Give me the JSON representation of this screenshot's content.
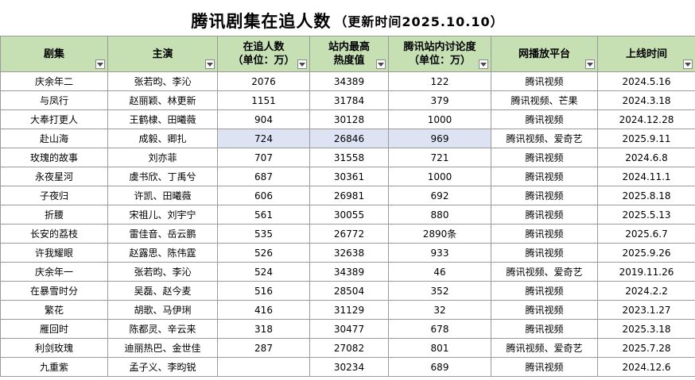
{
  "title": {
    "main": "腾讯剧集在追人数",
    "sub": "（更新时间2025.10.10）"
  },
  "colors": {
    "header_bg": "#c6e0b4",
    "selected_bg": "#dde3f3",
    "grid_line": "#9a9a9a"
  },
  "columns": [
    {
      "label": [
        "剧集"
      ]
    },
    {
      "label": [
        "主演"
      ]
    },
    {
      "label": [
        "在追人数",
        "（单位：万）"
      ]
    },
    {
      "label": [
        "站内最高",
        "热度值"
      ]
    },
    {
      "label": [
        "腾讯站内讨论度",
        "（单位：万）"
      ]
    },
    {
      "label": [
        "网播放平台"
      ]
    },
    {
      "label": [
        "上线时间"
      ]
    }
  ],
  "filter_icon": "dropdown-filter-icon",
  "rows": [
    [
      "庆余年二",
      "张若昀、李沁",
      "2076",
      "34389",
      "122",
      "腾讯视频",
      "2024.5.16"
    ],
    [
      "与凤行",
      "赵丽颖、林更新",
      "1151",
      "31784",
      "379",
      "腾讯视频、芒果",
      "2024.3.18"
    ],
    [
      "大奉打更人",
      "王鹤棣、田曦薇",
      "904",
      "30128",
      "1000",
      "腾讯视频",
      "2024.12.28"
    ],
    [
      "赴山海",
      "成毅、卿扎",
      "724",
      "26846",
      "969",
      "腾讯视频、爱奇艺",
      "2025.9.11"
    ],
    [
      "玫瑰的故事",
      "刘亦菲",
      "707",
      "31558",
      "721",
      "腾讯视频",
      "2024.6.8"
    ],
    [
      "永夜星河",
      "虞书欣、丁禹兮",
      "687",
      "30361",
      "1000",
      "腾讯视频",
      "2024.11.1"
    ],
    [
      "子夜归",
      "许凯、田曦薇",
      "606",
      "26981",
      "692",
      "腾讯视频",
      "2025.8.18"
    ],
    [
      "折腰",
      "宋祖儿、刘宇宁",
      "561",
      "30055",
      "880",
      "腾讯视频",
      "2025.5.13"
    ],
    [
      "长安的荔枝",
      "雷佳音、岳云鹏",
      "535",
      "26772",
      "2890条",
      "腾讯视频",
      "2025.6.7"
    ],
    [
      "许我耀眼",
      "赵露思、陈伟霆",
      "526",
      "32638",
      "933",
      "腾讯视频",
      "2025.9.26"
    ],
    [
      "庆余年一",
      "张若昀、李沁",
      "524",
      "34389",
      "46",
      "腾讯视频、爱奇艺",
      "2019.11.26"
    ],
    [
      "在暴雪时分",
      "吴磊、赵今麦",
      "516",
      "28504",
      "352",
      "腾讯视频",
      "2024.2.2"
    ],
    [
      "繁花",
      "胡歌、马伊琍",
      "416",
      "31129",
      "32",
      "腾讯视频",
      "2023.1.27"
    ],
    [
      "雁回时",
      "陈都灵、辛云来",
      "318",
      "30477",
      "678",
      "腾讯视频",
      "2025.3.18"
    ],
    [
      "利剑玫瑰",
      "迪丽热巴、金世佳",
      "287",
      "27082",
      "801",
      "腾讯视频、爱奇艺",
      "2025.7.28"
    ],
    [
      "九重紫",
      "孟子义、李昀锐",
      "",
      "30234",
      "689",
      "腾讯视频",
      "2024.12.6"
    ]
  ],
  "selected_row": 3,
  "selected_cols": [
    2,
    3,
    4
  ]
}
